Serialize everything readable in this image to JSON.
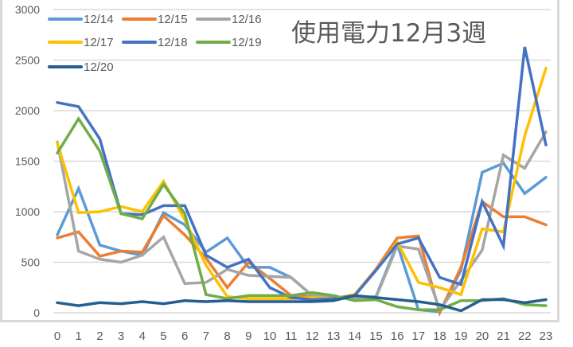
{
  "chart_data": {
    "type": "line",
    "title": "使用電力12月3週",
    "xlabel": "",
    "ylabel": "",
    "ylim": [
      0,
      3000
    ],
    "yticks": [
      0,
      500,
      1000,
      1500,
      2000,
      2500,
      3000
    ],
    "grid": true,
    "legend_position": "top-left (inside plot)",
    "x": [
      0,
      1,
      2,
      3,
      4,
      5,
      6,
      7,
      8,
      9,
      10,
      11,
      12,
      13,
      14,
      15,
      16,
      17,
      18,
      19,
      20,
      21,
      22,
      23
    ],
    "series": [
      {
        "name": "12/14",
        "color": "#5B9BD5",
        "values": [
          770,
          1230,
          670,
          610,
          570,
          990,
          870,
          600,
          740,
          450,
          450,
          350,
          170,
          150,
          150,
          160,
          680,
          30,
          10,
          420,
          1390,
          1480,
          1180,
          1340
        ]
      },
      {
        "name": "12/15",
        "color": "#ED7D31",
        "values": [
          740,
          800,
          560,
          610,
          600,
          960,
          770,
          540,
          250,
          500,
          340,
          170,
          160,
          140,
          180,
          430,
          740,
          760,
          0,
          450,
          1100,
          950,
          950,
          870
        ]
      },
      {
        "name": "12/16",
        "color": "#A5A5A5",
        "values": [
          1690,
          610,
          530,
          500,
          570,
          750,
          290,
          300,
          430,
          370,
          360,
          350,
          170,
          150,
          140,
          150,
          660,
          630,
          30,
          320,
          620,
          1560,
          1430,
          1790
        ]
      },
      {
        "name": "12/17",
        "color": "#FFC000",
        "values": [
          1680,
          990,
          1000,
          1050,
          1000,
          1300,
          920,
          470,
          160,
          140,
          140,
          140,
          150,
          140,
          180,
          420,
          700,
          300,
          250,
          180,
          830,
          800,
          1750,
          2420
        ]
      },
      {
        "name": "12/18",
        "color": "#4472C4",
        "values": [
          2080,
          2040,
          1720,
          980,
          970,
          1060,
          1060,
          570,
          450,
          530,
          250,
          150,
          130,
          140,
          170,
          420,
          680,
          740,
          350,
          280,
          1100,
          660,
          2630,
          1660
        ]
      },
      {
        "name": "12/19",
        "color": "#70AD47",
        "values": [
          1580,
          1920,
          1600,
          980,
          930,
          1270,
          980,
          180,
          140,
          170,
          170,
          170,
          200,
          170,
          120,
          130,
          60,
          30,
          30,
          120,
          120,
          140,
          80,
          70
        ]
      },
      {
        "name": "12/20",
        "color": "#255E91",
        "values": [
          100,
          70,
          100,
          90,
          110,
          90,
          120,
          110,
          120,
          110,
          110,
          110,
          110,
          120,
          170,
          150,
          130,
          110,
          80,
          20,
          130,
          130,
          100,
          130
        ]
      }
    ]
  }
}
